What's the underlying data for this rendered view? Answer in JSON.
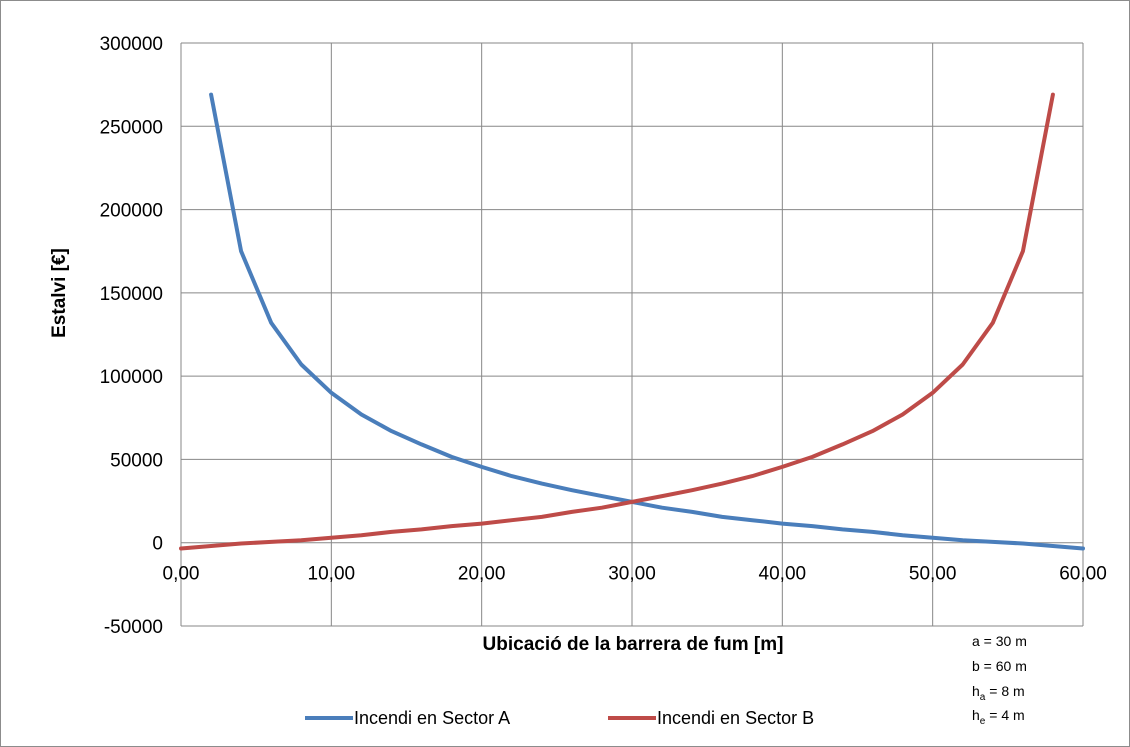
{
  "chart_data": {
    "type": "line",
    "title": "",
    "xlabel": "Ubicació de la barrera de fum [m]",
    "ylabel": "Estalvi [€]",
    "xlim": [
      0,
      60
    ],
    "ylim": [
      -50000,
      300000
    ],
    "x_ticks": [
      "0,00",
      "10,00",
      "20,00",
      "30,00",
      "40,00",
      "50,00",
      "60,00"
    ],
    "y_ticks": [
      "-50000",
      "0",
      "50000",
      "100000",
      "150000",
      "200000",
      "250000",
      "300000"
    ],
    "grid": true,
    "legend_position": "bottom",
    "series": [
      {
        "name": "Incendi en Sector A",
        "color": "#4a7ebb",
        "x": [
          2,
          4,
          6,
          8,
          10,
          12,
          14,
          16,
          18,
          20,
          22,
          24,
          26,
          28,
          30,
          32,
          34,
          36,
          38,
          40,
          42,
          44,
          46,
          48,
          50,
          52,
          54,
          56,
          58,
          60
        ],
        "y": [
          269000,
          175000,
          132000,
          107000,
          90000,
          77000,
          67000,
          59000,
          51500,
          45500,
          40000,
          35500,
          31500,
          28000,
          24500,
          21000,
          18500,
          15500,
          13500,
          11500,
          10000,
          8000,
          6500,
          4500,
          3000,
          1500,
          500,
          -500,
          -2000,
          -3500
        ]
      },
      {
        "name": "Incendi en Sector B",
        "color": "#be4b48",
        "x": [
          0,
          2,
          4,
          6,
          8,
          10,
          12,
          14,
          16,
          18,
          20,
          22,
          24,
          26,
          28,
          30,
          32,
          34,
          36,
          38,
          40,
          42,
          44,
          46,
          48,
          50,
          52,
          54,
          56,
          58
        ],
        "y": [
          -3500,
          -2000,
          -500,
          500,
          1500,
          3000,
          4500,
          6500,
          8000,
          10000,
          11500,
          13500,
          15500,
          18500,
          21000,
          24500,
          28000,
          31500,
          35500,
          40000,
          45500,
          51500,
          59000,
          67000,
          77000,
          90000,
          107000,
          132000,
          175000,
          269000
        ]
      }
    ],
    "annotations": {
      "a": "a = 30 m",
      "b": "b = 60 m",
      "ha_main": "h",
      "ha_sub": "a",
      "ha_rest": " = 8 m",
      "he_main": "h",
      "he_sub": "e",
      "he_rest": " = 4 m"
    }
  }
}
